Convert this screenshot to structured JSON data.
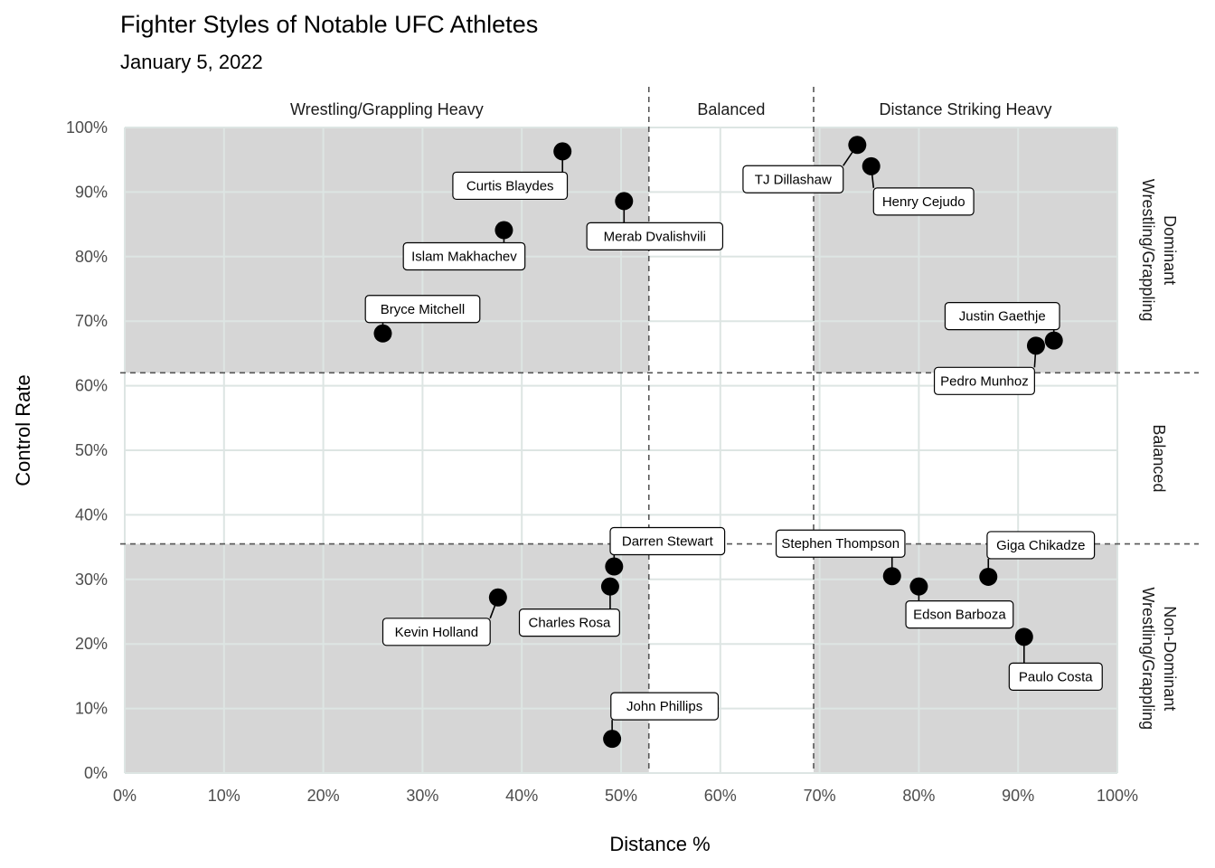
{
  "chart_data": {
    "type": "scatter",
    "title": "Fighter Styles of Notable UFC Athletes",
    "subtitle": "January 5, 2022",
    "xlabel": "Distance %",
    "ylabel": "Control Rate",
    "xlim": [
      0,
      100
    ],
    "ylim": [
      0,
      100
    ],
    "x_ticks": [
      "0%",
      "10%",
      "20%",
      "30%",
      "40%",
      "50%",
      "60%",
      "70%",
      "80%",
      "90%",
      "100%"
    ],
    "y_ticks": [
      "0%",
      "10%",
      "20%",
      "30%",
      "40%",
      "50%",
      "60%",
      "70%",
      "80%",
      "90%",
      "100%"
    ],
    "x_thresholds": [
      52.8,
      69.4
    ],
    "y_thresholds": [
      35.5,
      62
    ],
    "x_bands": [
      "Wrestling/Grappling Heavy",
      "Balanced",
      "Distance Striking Heavy"
    ],
    "y_bands": [
      "Dominant\nWrestling/Grappling",
      "Balanced",
      "Non-Dominant\nWrestling/Grappling"
    ],
    "grid": true,
    "shaded_corners": true,
    "points": [
      {
        "name": "Curtis Blaydes",
        "x": 44.1,
        "y": 96.3
      },
      {
        "name": "Merab Dvalishvili",
        "x": 50.3,
        "y": 88.6
      },
      {
        "name": "Islam Makhachev",
        "x": 38.2,
        "y": 84.1
      },
      {
        "name": "Bryce Mitchell",
        "x": 26.0,
        "y": 68.1
      },
      {
        "name": "TJ Dillashaw",
        "x": 73.8,
        "y": 97.3
      },
      {
        "name": "Henry Cejudo",
        "x": 75.2,
        "y": 94.0
      },
      {
        "name": "Justin Gaethje",
        "x": 93.6,
        "y": 67.0
      },
      {
        "name": "Pedro Munhoz",
        "x": 91.8,
        "y": 66.2
      },
      {
        "name": "Darren Stewart",
        "x": 49.3,
        "y": 32.0
      },
      {
        "name": "Charles Rosa",
        "x": 48.9,
        "y": 28.9
      },
      {
        "name": "Kevin Holland",
        "x": 37.6,
        "y": 27.2
      },
      {
        "name": "John Phillips",
        "x": 49.1,
        "y": 5.3
      },
      {
        "name": "Stephen Thompson",
        "x": 77.3,
        "y": 30.5
      },
      {
        "name": "Edson Barboza",
        "x": 80.0,
        "y": 28.9
      },
      {
        "name": "Giga Chikadze",
        "x": 87.0,
        "y": 30.4
      },
      {
        "name": "Paulo Costa",
        "x": 90.6,
        "y": 21.1
      }
    ]
  }
}
